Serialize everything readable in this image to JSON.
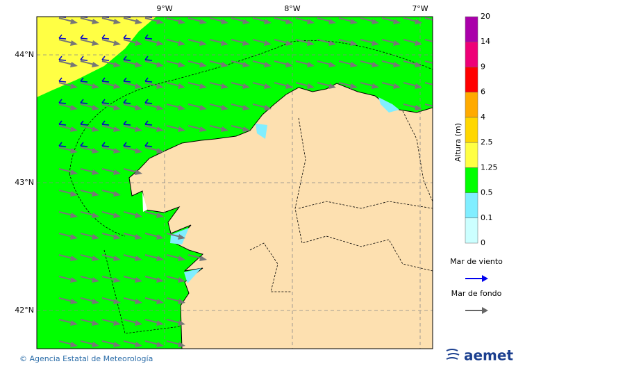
{
  "map": {
    "lon_labels": [
      "9°W",
      "8°W",
      "7°W"
    ],
    "lat_labels": [
      "44°N",
      "43°N",
      "42°N"
    ]
  },
  "colorbar": {
    "title": "Altura (m)",
    "levels": [
      "0",
      "0.1",
      "0.5",
      "1.25",
      "2.5",
      "4",
      "6",
      "9",
      "14",
      "20"
    ],
    "colors": [
      "#ccffff",
      "#80eeff",
      "#00ff00",
      "#ffff44",
      "#ffd700",
      "#ffaa00",
      "#ff0000",
      "#ee0077",
      "#aa00aa"
    ]
  },
  "legend": {
    "items": [
      {
        "label": "Mar de viento",
        "color": "#0000ee"
      },
      {
        "label": "Mar de fondo",
        "color": "#666666"
      }
    ]
  },
  "footer": {
    "credit": "© Agencia Estatal de Meteorología",
    "logo": "aemet"
  }
}
